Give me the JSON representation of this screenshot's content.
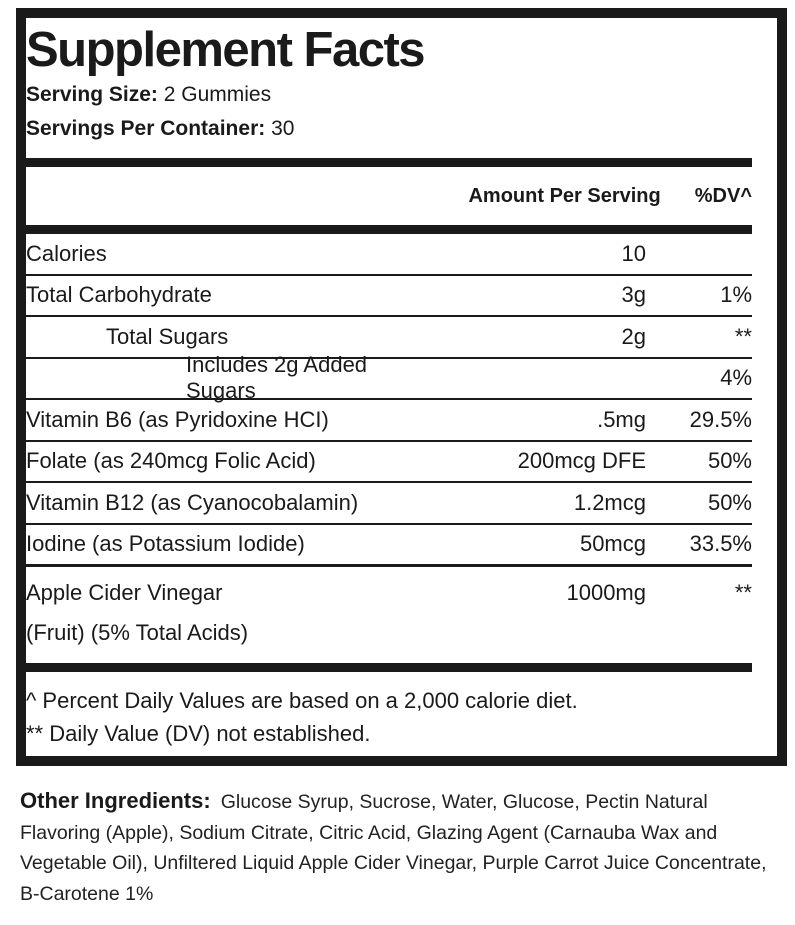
{
  "title": "Supplement Facts",
  "serving_size": {
    "label": "Serving Size:",
    "value": "2 Gummies"
  },
  "servings_per_container": {
    "label": "Servings Per Container:",
    "value": "30"
  },
  "columns": {
    "amount": "Amount Per Serving",
    "dv": "%DV^"
  },
  "rows": [
    {
      "name": "Calories",
      "amount": "10",
      "dv": ""
    },
    {
      "name": "Total Carbohydrate",
      "amount": "3g",
      "dv": "1%"
    },
    {
      "name": "Total Sugars",
      "amount": "2g",
      "dv": "**"
    },
    {
      "name": "Includes 2g Added Sugars",
      "amount": "",
      "dv": "4%"
    },
    {
      "name": "Vitamin B6 (as Pyridoxine HCI)",
      "amount": ".5mg",
      "dv": "29.5%"
    },
    {
      "name": "Folate (as 240mcg Folic Acid)",
      "amount": "200mcg DFE",
      "dv": "50%"
    },
    {
      "name": "Vitamin B12 (as Cyanocobalamin)",
      "amount": "1.2mcg",
      "dv": "50%"
    },
    {
      "name": "Iodine (as Potassium Iodide)",
      "amount": "50mcg",
      "dv": "33.5%"
    },
    {
      "name": "Apple Cider Vinegar",
      "name2": "(Fruit) (5% Total Acids)",
      "amount": "1000mg",
      "dv": "**"
    }
  ],
  "footnotes": [
    "^ Percent Daily Values are based on a 2,000 calorie diet.",
    "** Daily Value (DV) not established."
  ],
  "other_ingredients": {
    "label": "Other Ingredients:",
    "text": "Glucose Syrup, Sucrose, Water, Glucose, Pectin Natural Flavoring (Apple), Sodium Citrate, Citric Acid, Glazing Agent (Carnauba Wax and Vegetable Oil), Unfiltered Liquid Apple Cider Vinegar, Purple Carrot Juice Concentrate, B-Carotene 1%"
  }
}
